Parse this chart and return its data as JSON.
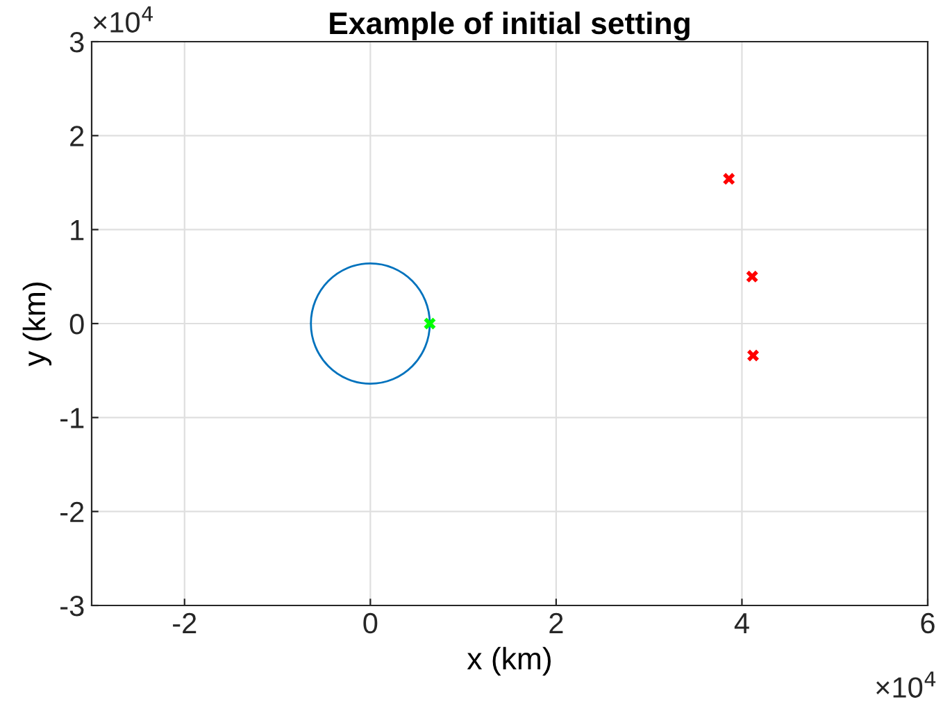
{
  "chart_data": {
    "type": "scatter",
    "title": "Example of initial setting",
    "xlabel": "x (km)",
    "ylabel": "y (km)",
    "xlim": [
      -3,
      6
    ],
    "ylim": [
      -3,
      3
    ],
    "xticks": [
      -2,
      0,
      2,
      4,
      6
    ],
    "yticks": [
      -3,
      -2,
      -1,
      0,
      1,
      2,
      3
    ],
    "grid": true,
    "annotations": [
      "×10$^{4}$",
      "×10$^{4}$"
    ],
    "series": [
      {
        "color": "#00ff00",
        "marker": "cross",
        "x": [
          0.64
        ],
        "values": [
          0
        ]
      },
      {
        "color": "#ff0000",
        "marker": "cross",
        "x": [
          3.86,
          4.11,
          4.12
        ],
        "values": [
          1.54,
          0.5,
          -0.34
        ]
      }
    ]
  }
}
